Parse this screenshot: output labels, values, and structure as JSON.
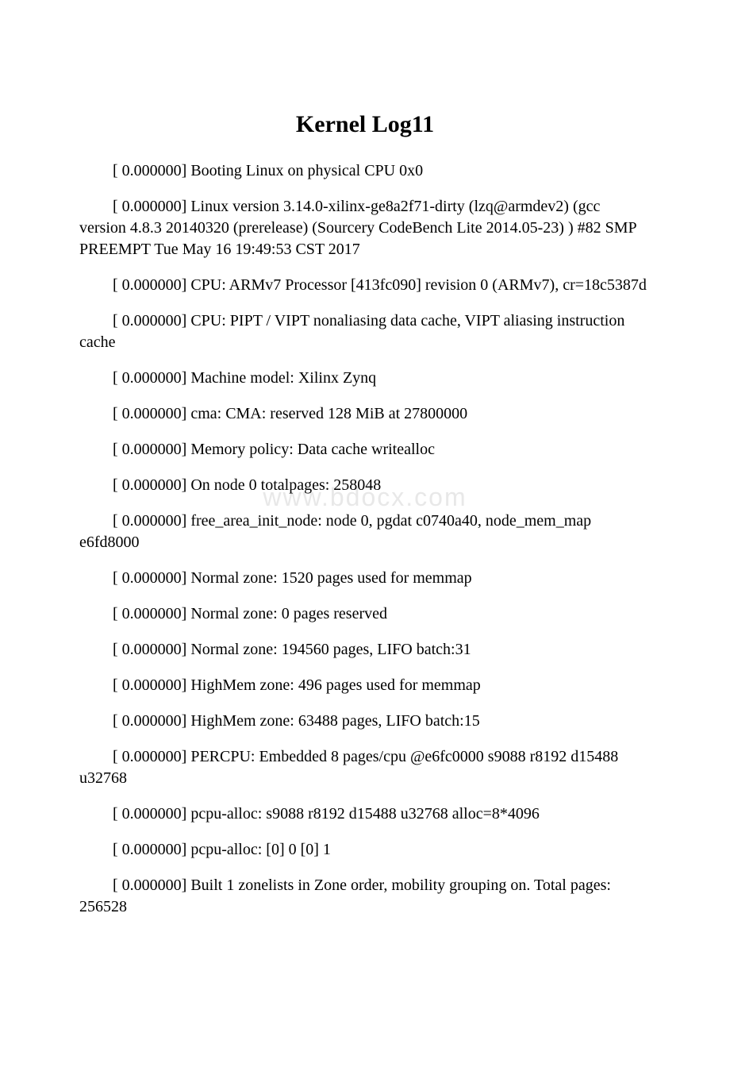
{
  "title": "Kernel Log11",
  "watermark": "www.bdocx.com",
  "log_lines": [
    "[ 0.000000] Booting Linux on physical CPU 0x0",
    "[ 0.000000] Linux version 3.14.0-xilinx-ge8a2f71-dirty (lzq@armdev2) (gcc version 4.8.3 20140320 (prerelease) (Sourcery CodeBench Lite 2014.05-23) ) #82 SMP PREEMPT Tue May 16 19:49:53 CST 2017",
    "[ 0.000000] CPU: ARMv7 Processor [413fc090] revision 0 (ARMv7), cr=18c5387d",
    "[ 0.000000] CPU: PIPT / VIPT nonaliasing data cache, VIPT aliasing instruction cache",
    "[ 0.000000] Machine model: Xilinx Zynq",
    "[ 0.000000] cma: CMA: reserved 128 MiB at 27800000",
    "[ 0.000000] Memory policy: Data cache writealloc",
    "[ 0.000000] On node 0 totalpages: 258048",
    "[ 0.000000] free_area_init_node: node 0, pgdat c0740a40, node_mem_map e6fd8000",
    "[ 0.000000] Normal zone: 1520 pages used for memmap",
    "[ 0.000000] Normal zone: 0 pages reserved",
    "[ 0.000000] Normal zone: 194560 pages, LIFO batch:31",
    "[ 0.000000] HighMem zone: 496 pages used for memmap",
    "[ 0.000000] HighMem zone: 63488 pages, LIFO batch:15",
    "[ 0.000000] PERCPU: Embedded 8 pages/cpu @e6fc0000 s9088 r8192 d15488 u32768",
    "[ 0.000000] pcpu-alloc: s9088 r8192 d15488 u32768 alloc=8*4096",
    "[ 0.000000] pcpu-alloc: [0] 0 [0] 1",
    "[ 0.000000] Built 1 zonelists in Zone order, mobility grouping on. Total pages: 256528"
  ]
}
